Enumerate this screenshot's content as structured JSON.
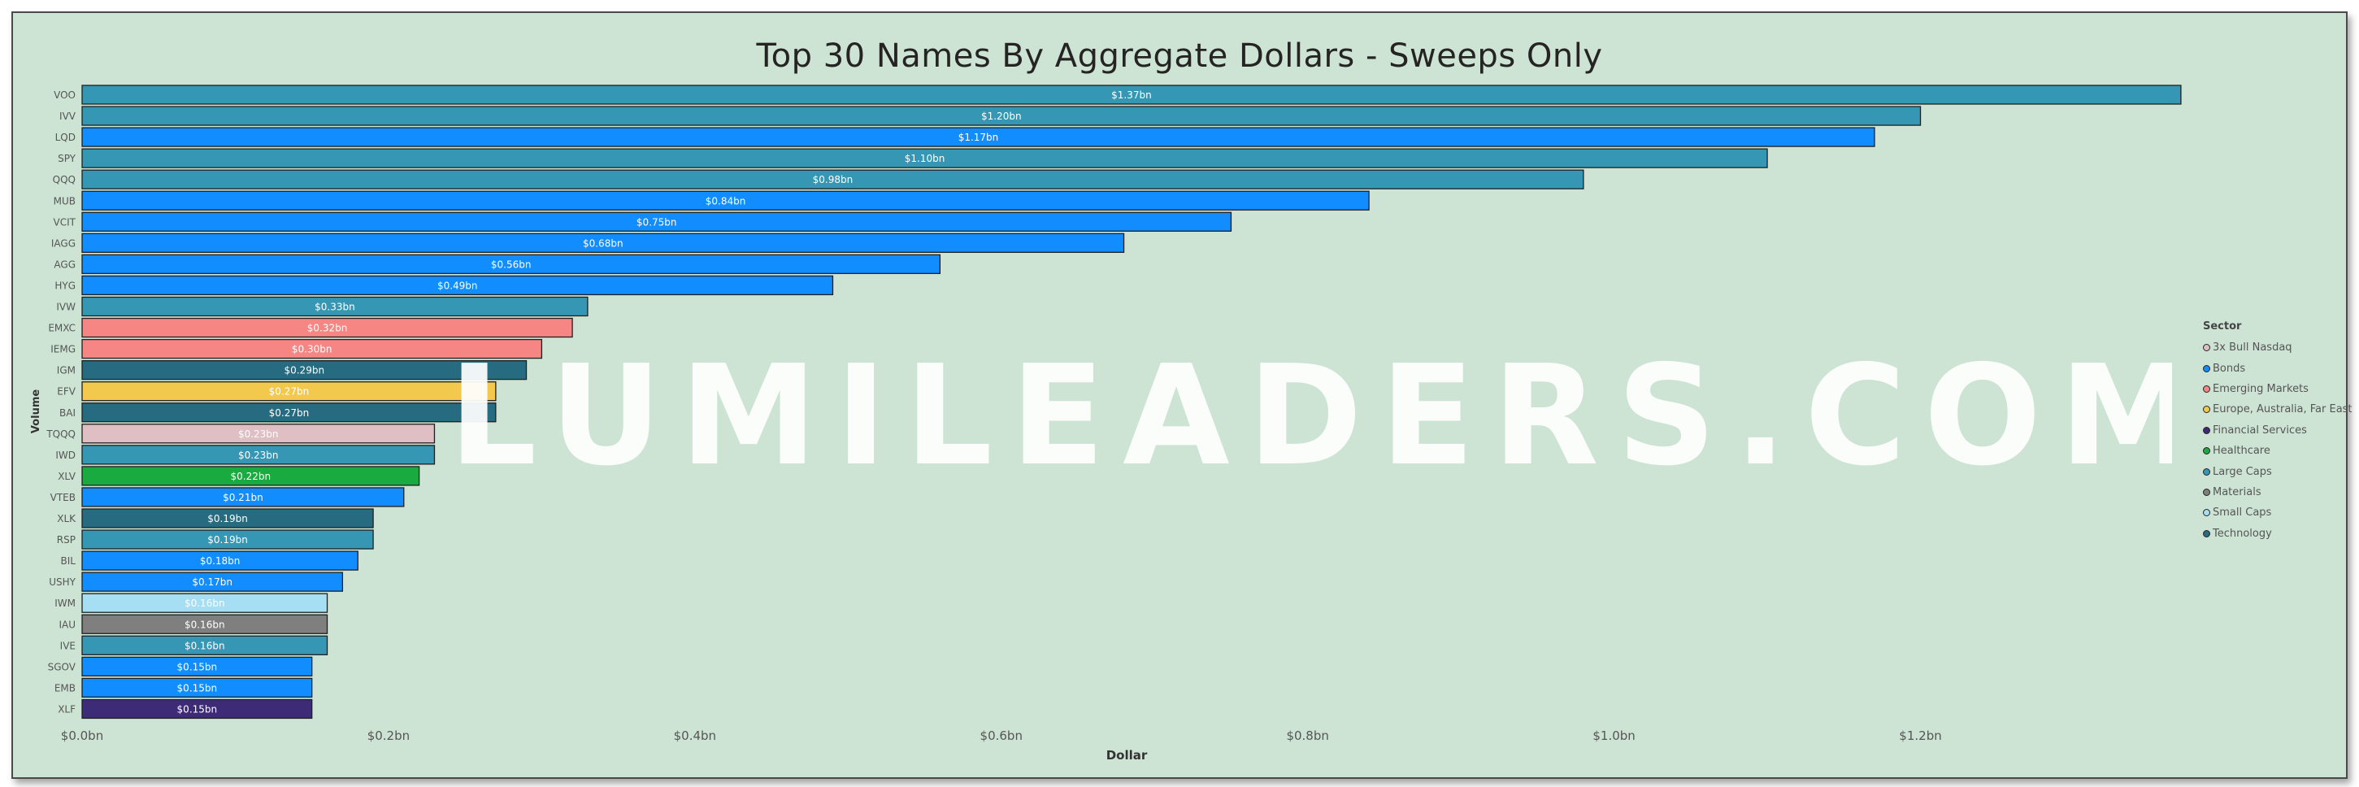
{
  "chart_data": {
    "type": "bar",
    "orientation": "horizontal",
    "title": "Top 30 Names By Aggregate Dollars - Sweeps Only",
    "xlabel": "Dollar",
    "ylabel": "Volume",
    "xlim": [
      0,
      1.45
    ],
    "x_ticks": [
      {
        "value": 0.0,
        "label": "$0.0bn"
      },
      {
        "value": 0.2,
        "label": "$0.2bn"
      },
      {
        "value": 0.4,
        "label": "$0.4bn"
      },
      {
        "value": 0.6,
        "label": "$0.6bn"
      },
      {
        "value": 0.8,
        "label": "$0.8bn"
      },
      {
        "value": 1.0,
        "label": "$1.0bn"
      },
      {
        "value": 1.2,
        "label": "$1.2bn"
      }
    ],
    "grid": false,
    "legend_position": "right",
    "legend_title": "Sector",
    "legend": [
      {
        "name": "3x Bull Nasdaq",
        "color": "#e0bfc4"
      },
      {
        "name": "Bonds",
        "color": "#118dff"
      },
      {
        "name": "Emerging Markets",
        "color": "#f68683"
      },
      {
        "name": "Europe, Australia, Far East",
        "color": "#f2c94c"
      },
      {
        "name": "Financial Services",
        "color": "#3e2b78"
      },
      {
        "name": "Healthcare",
        "color": "#1aab40"
      },
      {
        "name": "Large Caps",
        "color": "#3597b4"
      },
      {
        "name": "Materials",
        "color": "#7f7f7f"
      },
      {
        "name": "Small Caps",
        "color": "#a6dff3"
      },
      {
        "name": "Technology",
        "color": "#266b80"
      }
    ],
    "bars": [
      {
        "category": "VOO",
        "value": 1.37,
        "label": "$1.37bn",
        "sector": "Large Caps"
      },
      {
        "category": "IVV",
        "value": 1.2,
        "label": "$1.20bn",
        "sector": "Large Caps"
      },
      {
        "category": "LQD",
        "value": 1.17,
        "label": "$1.17bn",
        "sector": "Bonds"
      },
      {
        "category": "SPY",
        "value": 1.1,
        "label": "$1.10bn",
        "sector": "Large Caps"
      },
      {
        "category": "QQQ",
        "value": 0.98,
        "label": "$0.98bn",
        "sector": "Large Caps"
      },
      {
        "category": "MUB",
        "value": 0.84,
        "label": "$0.84bn",
        "sector": "Bonds"
      },
      {
        "category": "VCIT",
        "value": 0.75,
        "label": "$0.75bn",
        "sector": "Bonds"
      },
      {
        "category": "IAGG",
        "value": 0.68,
        "label": "$0.68bn",
        "sector": "Bonds"
      },
      {
        "category": "AGG",
        "value": 0.56,
        "label": "$0.56bn",
        "sector": "Bonds"
      },
      {
        "category": "HYG",
        "value": 0.49,
        "label": "$0.49bn",
        "sector": "Bonds"
      },
      {
        "category": "IVW",
        "value": 0.33,
        "label": "$0.33bn",
        "sector": "Large Caps"
      },
      {
        "category": "EMXC",
        "value": 0.32,
        "label": "$0.32bn",
        "sector": "Emerging Markets"
      },
      {
        "category": "IEMG",
        "value": 0.3,
        "label": "$0.30bn",
        "sector": "Emerging Markets"
      },
      {
        "category": "IGM",
        "value": 0.29,
        "label": "$0.29bn",
        "sector": "Technology"
      },
      {
        "category": "EFV",
        "value": 0.27,
        "label": "$0.27bn",
        "sector": "Europe, Australia, Far East"
      },
      {
        "category": "BAI",
        "value": 0.27,
        "label": "$0.27bn",
        "sector": "Technology"
      },
      {
        "category": "TQQQ",
        "value": 0.23,
        "label": "$0.23bn",
        "sector": "3x Bull Nasdaq"
      },
      {
        "category": "IWD",
        "value": 0.23,
        "label": "$0.23bn",
        "sector": "Large Caps"
      },
      {
        "category": "XLV",
        "value": 0.22,
        "label": "$0.22bn",
        "sector": "Healthcare"
      },
      {
        "category": "VTEB",
        "value": 0.21,
        "label": "$0.21bn",
        "sector": "Bonds"
      },
      {
        "category": "XLK",
        "value": 0.19,
        "label": "$0.19bn",
        "sector": "Technology"
      },
      {
        "category": "RSP",
        "value": 0.19,
        "label": "$0.19bn",
        "sector": "Large Caps"
      },
      {
        "category": "BIL",
        "value": 0.18,
        "label": "$0.18bn",
        "sector": "Bonds"
      },
      {
        "category": "USHY",
        "value": 0.17,
        "label": "$0.17bn",
        "sector": "Bonds"
      },
      {
        "category": "IWM",
        "value": 0.16,
        "label": "$0.16bn",
        "sector": "Small Caps"
      },
      {
        "category": "IAU",
        "value": 0.16,
        "label": "$0.16bn",
        "sector": "Materials"
      },
      {
        "category": "IVE",
        "value": 0.16,
        "label": "$0.16bn",
        "sector": "Large Caps"
      },
      {
        "category": "SGOV",
        "value": 0.15,
        "label": "$0.15bn",
        "sector": "Bonds"
      },
      {
        "category": "EMB",
        "value": 0.15,
        "label": "$0.15bn",
        "sector": "Bonds"
      },
      {
        "category": "XLF",
        "value": 0.15,
        "label": "$0.15bn",
        "sector": "Financial Services"
      }
    ]
  },
  "watermark": {
    "text": "LUMILEADERS.COM"
  }
}
